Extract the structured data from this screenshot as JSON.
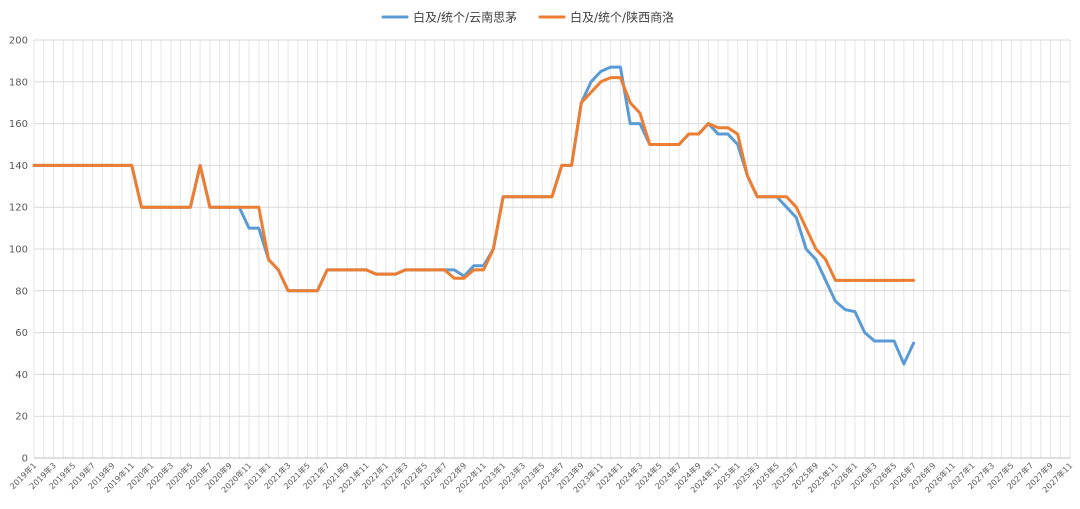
{
  "chart_data": {
    "type": "line",
    "title": "",
    "xlabel": "",
    "ylabel": "",
    "ylim": [
      0,
      200
    ],
    "yticks": [
      0,
      20,
      40,
      60,
      80,
      100,
      120,
      140,
      160,
      180,
      200
    ],
    "grid": true,
    "legend_position": "top-center",
    "x_tick_labels": [
      "2019年1",
      "2019年3",
      "2019年5",
      "2019年7",
      "2019年9",
      "2019年11",
      "2020年1",
      "2020年3",
      "2020年5",
      "2020年7",
      "2020年9",
      "2020年11",
      "2021年1",
      "2021年3",
      "2021年5",
      "2021年7",
      "2021年9",
      "2021年11",
      "2022年1",
      "2022年3",
      "2022年5",
      "2022年7",
      "2022年9",
      "2022年11",
      "2023年1",
      "2023年3",
      "2023年5",
      "2023年7",
      "2023年9",
      "2023年11",
      "2024年1",
      "2024年3",
      "2024年5",
      "2024年7",
      "2024年9",
      "2024年11",
      "2025年1",
      "2025年3",
      "2025年5",
      "2025年7",
      "2025年9",
      "2025年11",
      "2026年1",
      "2026年3",
      "2026年5",
      "2026年7",
      "2026年9",
      "2026年11",
      "2027年1",
      "2027年3",
      "2027年5",
      "2027年7",
      "2027年9",
      "2027年11"
    ],
    "series": [
      {
        "name": "白及/统个/云南思茅",
        "color": "#5b9bd5",
        "values": [
          140,
          140,
          140,
          140,
          140,
          140,
          140,
          140,
          140,
          140,
          140,
          120,
          120,
          120,
          120,
          120,
          120,
          140,
          120,
          120,
          120,
          120,
          110,
          110,
          95,
          90,
          80,
          80,
          80,
          80,
          90,
          90,
          90,
          90,
          90,
          88,
          88,
          88,
          90,
          90,
          90,
          90,
          90,
          90,
          87,
          92,
          92,
          100,
          125,
          125,
          125,
          125,
          125,
          125,
          140,
          140,
          170,
          180,
          185,
          187,
          187,
          160,
          160,
          150,
          150,
          150,
          150,
          155,
          155,
          160,
          155,
          155,
          150,
          135,
          125,
          125,
          125,
          120,
          115,
          100,
          95,
          85,
          75,
          71,
          70,
          60,
          56,
          56,
          56,
          45,
          55
        ]
      },
      {
        "name": "白及/统个/陕西商洛",
        "color": "#ed7d31",
        "values": [
          140,
          140,
          140,
          140,
          140,
          140,
          140,
          140,
          140,
          140,
          140,
          120,
          120,
          120,
          120,
          120,
          120,
          140,
          120,
          120,
          120,
          120,
          120,
          120,
          95,
          90,
          80,
          80,
          80,
          80,
          90,
          90,
          90,
          90,
          90,
          88,
          88,
          88,
          90,
          90,
          90,
          90,
          90,
          86,
          86,
          90,
          90,
          100,
          125,
          125,
          125,
          125,
          125,
          125,
          140,
          140,
          170,
          175,
          180,
          182,
          182,
          170,
          165,
          150,
          150,
          150,
          150,
          155,
          155,
          160,
          158,
          158,
          155,
          135,
          125,
          125,
          125,
          125,
          120,
          110,
          100,
          95,
          85,
          85,
          85,
          85,
          85,
          85,
          85,
          85,
          85
        ]
      }
    ]
  }
}
